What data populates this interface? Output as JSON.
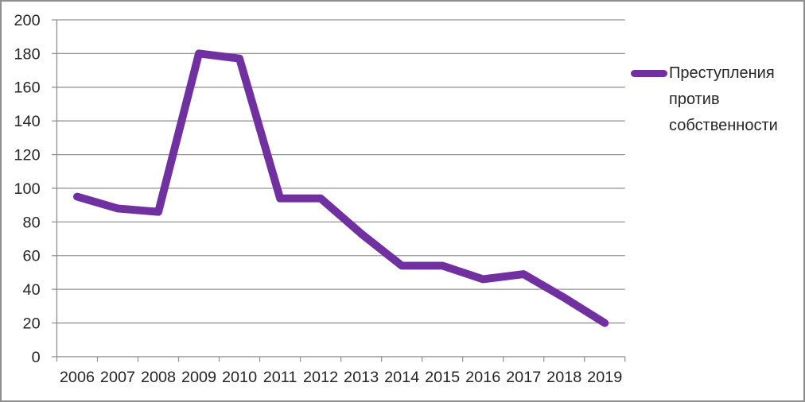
{
  "chart_data": {
    "type": "line",
    "title": "",
    "categories": [
      "2006",
      "2007",
      "2008",
      "2009",
      "2010",
      "2011",
      "2012",
      "2013",
      "2014",
      "2015",
      "2016",
      "2017",
      "2018",
      "2019"
    ],
    "series": [
      {
        "name": "Преступления против собственности",
        "values": [
          95,
          88,
          86,
          180,
          177,
          94,
          94,
          73,
          54,
          54,
          46,
          49,
          35,
          20
        ],
        "color": "#7030A0"
      }
    ],
    "xlabel": "",
    "ylabel": "",
    "ylim": [
      0,
      200
    ],
    "ytick_step": 20,
    "grid": "horizontal",
    "legend_position": "right"
  },
  "legend": {
    "label": "Преступления против собственности"
  },
  "colors": {
    "line": "#7030A0",
    "grid": "#949494",
    "axis": "#8c8c8c",
    "text": "#262626",
    "border": "#8e8e8e",
    "background": "#ffffff"
  }
}
